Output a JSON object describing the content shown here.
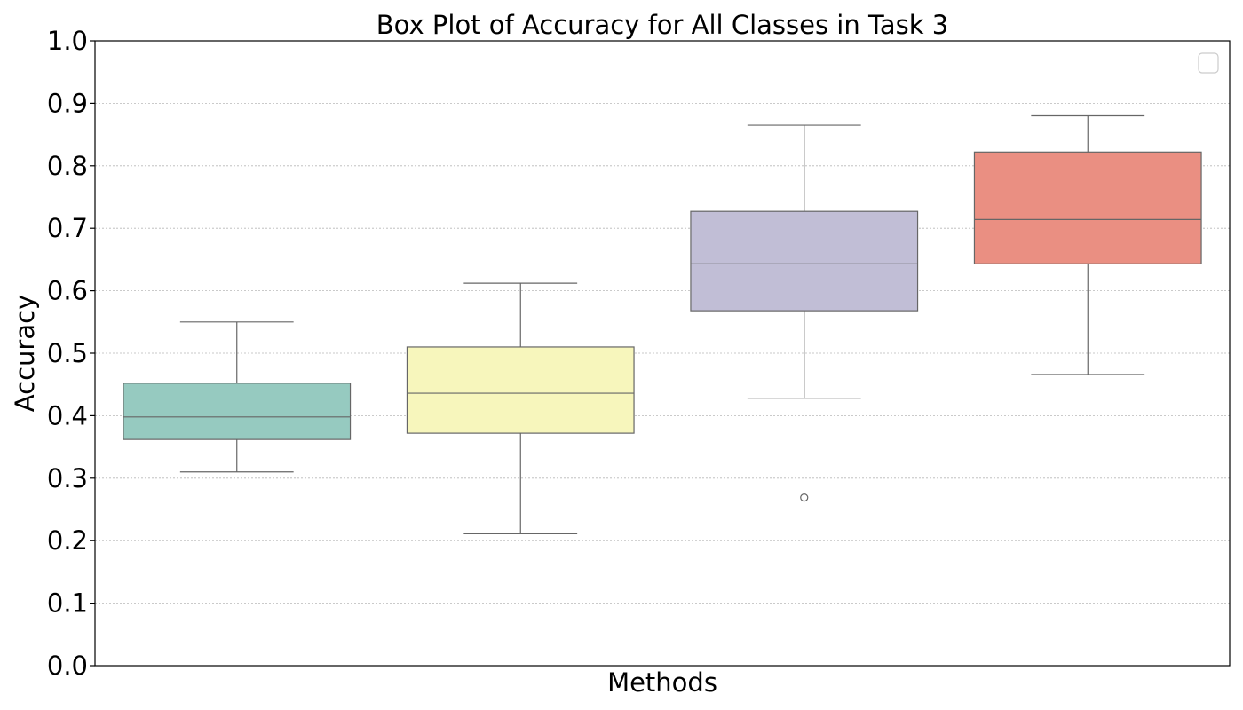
{
  "chart_data": {
    "type": "box",
    "title": "Box Plot of Accuracy for All Classes in Task 3",
    "xlabel": "Methods",
    "ylabel": "Accuracy",
    "ylim": [
      0,
      1.0
    ],
    "yticks": [
      "0.0",
      "0.1",
      "0.2",
      "0.3",
      "0.4",
      "0.5",
      "0.6",
      "0.7",
      "0.8",
      "0.9",
      "1.0"
    ],
    "grid": "horizontal-dotted",
    "legend": {
      "placement": "top-right",
      "entries": []
    },
    "boxes": [
      {
        "color": "#96cac0",
        "whisker_low": 0.31,
        "q1": 0.362,
        "median": 0.398,
        "q3": 0.452,
        "whisker_high": 0.55,
        "outliers": []
      },
      {
        "color": "#f7f6bc",
        "whisker_low": 0.211,
        "q1": 0.372,
        "median": 0.436,
        "q3": 0.51,
        "whisker_high": 0.612,
        "outliers": []
      },
      {
        "color": "#c1bed6",
        "whisker_low": 0.428,
        "q1": 0.568,
        "median": 0.643,
        "q3": 0.727,
        "whisker_high": 0.865,
        "outliers": [
          0.269
        ]
      },
      {
        "color": "#ea8f82",
        "whisker_low": 0.466,
        "q1": 0.643,
        "median": 0.714,
        "q3": 0.822,
        "whisker_high": 0.88,
        "outliers": []
      }
    ]
  }
}
